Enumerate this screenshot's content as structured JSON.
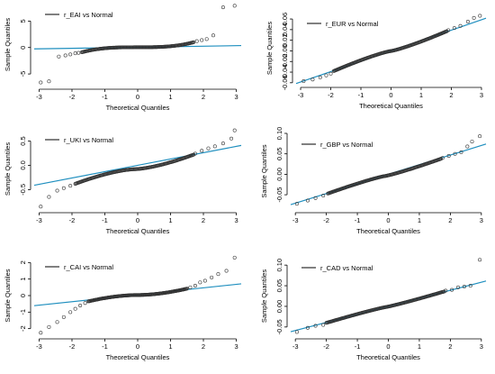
{
  "chart_data": [
    {
      "type": "scatter",
      "legend": "r_EAI vs Normal",
      "xlabel": "Theoretical Quantiles",
      "ylabel": "Sample Quantiles",
      "xlim": [
        -3.15,
        3.15
      ],
      "ylim": [
        -7.2,
        8.3
      ],
      "xticks": [
        -3,
        -2,
        -1,
        0,
        1,
        2,
        3
      ],
      "xtick_labels": [
        "-3",
        "-2",
        "-1",
        "0",
        "1",
        "2",
        "3"
      ],
      "yticks": [
        -5,
        0,
        5
      ],
      "ytick_labels": [
        "-5",
        "0",
        "5"
      ],
      "ref_line": {
        "intercept": 0.05,
        "slope": 0.1
      },
      "tail": {
        "left": [
          [
            -2.95,
            -6.6
          ],
          [
            -2.7,
            -6.4
          ],
          [
            -2.4,
            -1.7
          ],
          [
            -2.2,
            -1.5
          ],
          [
            -2.05,
            -1.3
          ],
          [
            -1.9,
            -1.1
          ],
          [
            -1.8,
            -1.0
          ]
        ],
        "right": [
          [
            1.8,
            1.2
          ],
          [
            1.95,
            1.4
          ],
          [
            2.1,
            1.6
          ],
          [
            2.3,
            2.3
          ],
          [
            2.6,
            7.6
          ],
          [
            2.95,
            7.9
          ]
        ]
      },
      "body": {
        "x0": -1.7,
        "x1": 1.7,
        "y0": -0.9,
        "y1": 1.0,
        "shape": 3.0
      }
    },
    {
      "type": "scatter",
      "legend": "r_EUR vs Normal",
      "xlabel": "Theoretical Quantiles",
      "ylabel": "Sample Quantiles",
      "xlim": [
        -3.15,
        3.15
      ],
      "ylim": [
        -0.062,
        0.072
      ],
      "xticks": [
        -3,
        -2,
        -1,
        0,
        1,
        2,
        3
      ],
      "xtick_labels": [
        "-3",
        "-2",
        "-1",
        "0",
        "1",
        "2",
        "3"
      ],
      "yticks": [
        -0.06,
        -0.04,
        -0.02,
        0.0,
        0.02,
        0.04,
        0.06
      ],
      "ytick_labels": [
        "-0.06",
        "-0.04",
        "-0.02",
        "0.00",
        "0.02",
        "0.04",
        "0.06"
      ],
      "ref_line": {
        "intercept": 0.0,
        "slope": 0.0195
      },
      "tail": {
        "left": [
          [
            -2.9,
            -0.057
          ],
          [
            -2.6,
            -0.054
          ],
          [
            -2.35,
            -0.05
          ],
          [
            -2.15,
            -0.046
          ],
          [
            -2.0,
            -0.043
          ]
        ],
        "right": [
          [
            1.9,
            0.039
          ],
          [
            2.1,
            0.043
          ],
          [
            2.3,
            0.047
          ],
          [
            2.55,
            0.055
          ],
          [
            2.75,
            0.062
          ],
          [
            2.95,
            0.066
          ]
        ]
      },
      "body": {
        "x0": -1.9,
        "x1": 1.85,
        "y0": -0.038,
        "y1": 0.037,
        "shape": 1.2
      }
    },
    {
      "type": "scatter",
      "legend": "r_UKI vs Normal",
      "xlabel": "Theoretical Quantiles",
      "ylabel": "Sample Quantiles",
      "xlim": [
        -3.15,
        3.15
      ],
      "ylim": [
        -0.9,
        0.75
      ],
      "xticks": [
        -3,
        -2,
        -1,
        0,
        1,
        2,
        3
      ],
      "xtick_labels": [
        "-3",
        "-2",
        "-1",
        "0",
        "1",
        "2",
        "3"
      ],
      "yticks": [
        -0.5,
        0.0,
        0.5
      ],
      "ytick_labels": [
        "-0.5",
        "0.0",
        "0.5"
      ],
      "ref_line": {
        "intercept": 0.0,
        "slope": 0.13
      },
      "tail": {
        "left": [
          [
            -2.95,
            -0.85
          ],
          [
            -2.7,
            -0.65
          ],
          [
            -2.45,
            -0.52
          ],
          [
            -2.25,
            -0.47
          ],
          [
            -2.05,
            -0.42
          ]
        ],
        "right": [
          [
            1.75,
            0.24
          ],
          [
            1.95,
            0.3
          ],
          [
            2.15,
            0.35
          ],
          [
            2.35,
            0.39
          ],
          [
            2.6,
            0.45
          ],
          [
            2.85,
            0.55
          ],
          [
            2.95,
            0.72
          ]
        ]
      },
      "body": {
        "x0": -1.9,
        "x1": 1.7,
        "y0": -0.38,
        "y1": 0.22,
        "shape": 1.5
      }
    },
    {
      "type": "scatter",
      "legend": "r_GBP vs Normal",
      "xlabel": "Theoretical Quantiles",
      "ylabel": "Sample Quantiles",
      "xlim": [
        -3.15,
        3.15
      ],
      "ylim": [
        -0.085,
        0.1
      ],
      "xticks": [
        -3,
        -2,
        -1,
        0,
        1,
        2,
        3
      ],
      "xtick_labels": [
        "-3",
        "-2",
        "-1",
        "0",
        "1",
        "2",
        "3"
      ],
      "yticks": [
        -0.05,
        0.0,
        0.05,
        0.1
      ],
      "ytick_labels": [
        "-0.05",
        "0.00",
        "0.05",
        "0.10"
      ],
      "ref_line": {
        "intercept": 0.0,
        "slope": 0.0235
      },
      "tail": {
        "left": [
          [
            -2.95,
            -0.072
          ],
          [
            -2.6,
            -0.064
          ],
          [
            -2.35,
            -0.058
          ],
          [
            -2.1,
            -0.052
          ]
        ],
        "right": [
          [
            1.75,
            0.04
          ],
          [
            1.95,
            0.045
          ],
          [
            2.15,
            0.05
          ],
          [
            2.35,
            0.054
          ],
          [
            2.55,
            0.068
          ],
          [
            2.7,
            0.08
          ],
          [
            2.95,
            0.093
          ]
        ]
      },
      "body": {
        "x0": -1.95,
        "x1": 1.7,
        "y0": -0.047,
        "y1": 0.038,
        "shape": 1.15
      }
    },
    {
      "type": "scatter",
      "legend": "r_CAI vs Normal",
      "xlabel": "Theoretical Quantiles",
      "ylabel": "Sample Quantiles",
      "xlim": [
        -3.15,
        3.15
      ],
      "ylim": [
        -2.4,
        2.4
      ],
      "xticks": [
        -3,
        -2,
        -1,
        0,
        1,
        2,
        3
      ],
      "xtick_labels": [
        "-3",
        "-2",
        "-1",
        "0",
        "1",
        "2",
        "3"
      ],
      "yticks": [
        -2,
        -1,
        0,
        1,
        2
      ],
      "ytick_labels": [
        "-2",
        "-1",
        "0",
        "1",
        "2"
      ],
      "ref_line": {
        "intercept": 0.05,
        "slope": 0.21
      },
      "tail": {
        "left": [
          [
            -2.95,
            -2.25
          ],
          [
            -2.7,
            -1.9
          ],
          [
            -2.45,
            -1.6
          ],
          [
            -2.25,
            -1.3
          ],
          [
            -2.05,
            -1.0
          ],
          [
            -1.9,
            -0.8
          ],
          [
            -1.75,
            -0.6
          ],
          [
            -1.6,
            -0.45
          ]
        ],
        "right": [
          [
            1.6,
            0.5
          ],
          [
            1.75,
            0.6
          ],
          [
            1.9,
            0.8
          ],
          [
            2.05,
            0.9
          ],
          [
            2.25,
            1.1
          ],
          [
            2.45,
            1.3
          ],
          [
            2.7,
            1.5
          ],
          [
            2.95,
            2.3
          ]
        ]
      },
      "body": {
        "x0": -1.5,
        "x1": 1.5,
        "y0": -0.35,
        "y1": 0.42,
        "shape": 1.8
      }
    },
    {
      "type": "scatter",
      "legend": "r_CAD vs Normal",
      "xlabel": "Theoretical Quantiles",
      "ylabel": "Sample Quantiles",
      "xlim": [
        -3.15,
        3.15
      ],
      "ylim": [
        -0.07,
        0.12
      ],
      "xticks": [
        -3,
        -2,
        -1,
        0,
        1,
        2,
        3
      ],
      "xtick_labels": [
        "-3",
        "-2",
        "-1",
        "0",
        "1",
        "2",
        "3"
      ],
      "yticks": [
        -0.05,
        0.0,
        0.05,
        0.1
      ],
      "ytick_labels": [
        "-0.05",
        "0.00",
        "0.05",
        "0.10"
      ],
      "ref_line": {
        "intercept": 0.0,
        "slope": 0.0195
      },
      "tail": {
        "left": [
          [
            -2.95,
            -0.062
          ],
          [
            -2.6,
            -0.052
          ],
          [
            -2.35,
            -0.047
          ],
          [
            -2.1,
            -0.045
          ]
        ],
        "right": [
          [
            1.85,
            0.038
          ],
          [
            2.05,
            0.04
          ],
          [
            2.25,
            0.046
          ],
          [
            2.45,
            0.048
          ],
          [
            2.65,
            0.05
          ],
          [
            2.95,
            0.113
          ]
        ]
      },
      "body": {
        "x0": -2.0,
        "x1": 1.8,
        "y0": -0.04,
        "y1": 0.036,
        "shape": 1.1
      }
    }
  ]
}
